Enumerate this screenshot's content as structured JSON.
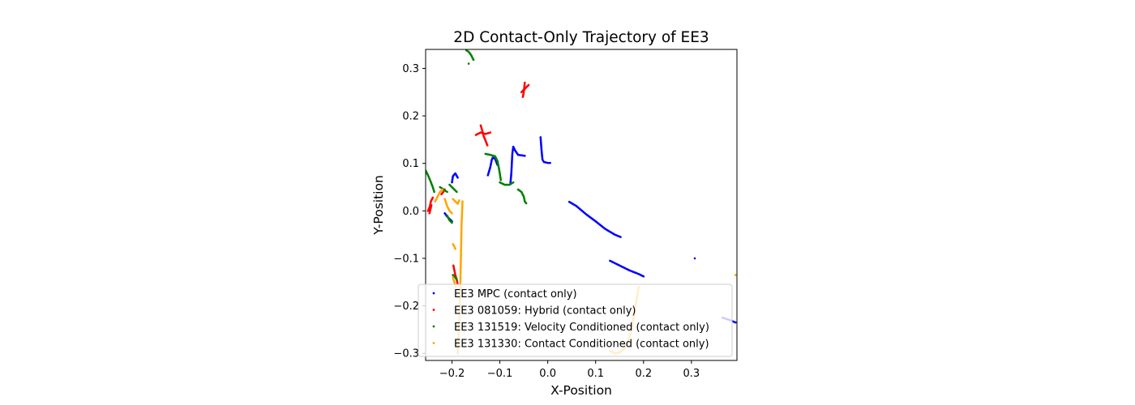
{
  "chart_data": {
    "type": "scatter",
    "title": "2D Contact-Only Trajectory of EE3",
    "xlabel": "X-Position",
    "ylabel": "Y-Position",
    "xlim": [
      -0.255,
      0.395
    ],
    "ylim": [
      -0.315,
      0.34
    ],
    "xticks": [
      -0.2,
      -0.1,
      0.0,
      0.1,
      0.2,
      0.3
    ],
    "xtick_labels": [
      "−0.2",
      "−0.1",
      "0.0",
      "0.1",
      "0.2",
      "0.3"
    ],
    "yticks": [
      -0.3,
      -0.2,
      -0.1,
      0.0,
      0.1,
      0.2,
      0.3
    ],
    "ytick_labels": [
      "−0.3",
      "−0.2",
      "−0.1",
      "0.0",
      "0.1",
      "0.2",
      "0.3"
    ],
    "grid": false,
    "legend_position": "lower-right",
    "series": [
      {
        "name": "EE3 MPC (contact only)",
        "color": "#0000ff",
        "segments": [
          [
            [
              -0.015,
              0.155
            ],
            [
              -0.013,
              0.128
            ],
            [
              -0.011,
              0.108
            ],
            [
              -0.008,
              0.103
            ],
            [
              0.0,
              0.101
            ],
            [
              0.005,
              0.101
            ]
          ],
          [
            [
              -0.125,
              0.075
            ],
            [
              -0.12,
              0.092
            ],
            [
              -0.117,
              0.107
            ],
            [
              -0.115,
              0.112
            ],
            [
              -0.11,
              0.11
            ],
            [
              -0.105,
              0.097
            ]
          ],
          [
            [
              -0.078,
              0.057
            ],
            [
              -0.076,
              0.08
            ],
            [
              -0.075,
              0.1
            ],
            [
              -0.074,
              0.12
            ],
            [
              -0.072,
              0.135
            ],
            [
              -0.068,
              0.127
            ],
            [
              -0.062,
              0.118
            ],
            [
              -0.055,
              0.117
            ],
            [
              -0.048,
              0.116
            ]
          ],
          [
            [
              -0.2,
              0.06
            ],
            [
              -0.198,
              0.073
            ],
            [
              -0.193,
              0.079
            ],
            [
              -0.188,
              0.07
            ]
          ],
          [
            [
              -0.215,
              -0.005
            ],
            [
              -0.21,
              -0.012
            ],
            [
              -0.205,
              -0.017
            ],
            [
              -0.2,
              -0.022
            ]
          ],
          [
            [
              0.045,
              0.019
            ],
            [
              0.06,
              0.01
            ],
            [
              0.08,
              -0.007
            ],
            [
              0.1,
              -0.022
            ],
            [
              0.12,
              -0.038
            ],
            [
              0.14,
              -0.05
            ],
            [
              0.152,
              -0.055
            ]
          ],
          [
            [
              0.13,
              -0.105
            ],
            [
              0.15,
              -0.115
            ],
            [
              0.17,
              -0.125
            ],
            [
              0.19,
              -0.133
            ],
            [
              0.2,
              -0.138
            ]
          ],
          [
            [
              0.307,
              -0.1
            ]
          ],
          [
            [
              0.365,
              -0.225
            ],
            [
              0.38,
              -0.23
            ],
            [
              0.392,
              -0.235
            ]
          ]
        ]
      },
      {
        "name": "EE3 081059: Hybrid (contact only)",
        "color": "#ff0000",
        "segments": [
          [
            [
              -0.055,
              0.25
            ],
            [
              -0.05,
              0.255
            ],
            [
              -0.045,
              0.26
            ],
            [
              -0.04,
              0.265
            ]
          ],
          [
            [
              -0.052,
              0.24
            ],
            [
              -0.05,
              0.25
            ],
            [
              -0.049,
              0.26
            ],
            [
              -0.048,
              0.27
            ]
          ],
          [
            [
              -0.15,
              0.16
            ],
            [
              -0.14,
              0.165
            ],
            [
              -0.13,
              0.162
            ],
            [
              -0.12,
              0.165
            ]
          ],
          [
            [
              -0.14,
              0.18
            ],
            [
              -0.137,
              0.17
            ],
            [
              -0.134,
              0.158
            ],
            [
              -0.13,
              0.148
            ],
            [
              -0.126,
              0.138
            ]
          ],
          [
            [
              -0.25,
              0.0
            ],
            [
              -0.248,
              0.005
            ],
            [
              -0.246,
              0.01
            ],
            [
              -0.244,
              0.02
            ],
            [
              -0.24,
              0.028
            ]
          ],
          [
            [
              -0.247,
              -0.005
            ],
            [
              -0.245,
              0.003
            ],
            [
              -0.243,
              0.012
            ]
          ],
          [
            [
              -0.222,
              0.035
            ],
            [
              -0.218,
              0.04
            ],
            [
              -0.215,
              0.045
            ]
          ],
          [
            [
              -0.197,
              -0.115
            ],
            [
              -0.195,
              -0.125
            ],
            [
              -0.193,
              -0.135
            ],
            [
              -0.19,
              -0.145
            ],
            [
              -0.188,
              -0.155
            ]
          ]
        ]
      },
      {
        "name": "EE3 131519: Velocity Conditioned (contact only)",
        "color": "#008000",
        "segments": [
          [
            [
              -0.17,
              0.338
            ],
            [
              -0.165,
              0.335
            ],
            [
              -0.16,
              0.328
            ],
            [
              -0.155,
              0.318
            ]
          ],
          [
            [
              -0.165,
              0.31
            ]
          ],
          [
            [
              -0.13,
              0.12
            ],
            [
              -0.12,
              0.118
            ],
            [
              -0.11,
              0.115
            ],
            [
              -0.105,
              0.105
            ],
            [
              -0.102,
              0.09
            ],
            [
              -0.1,
              0.078
            ],
            [
              -0.098,
              0.065
            ]
          ],
          [
            [
              -0.1,
              0.06
            ],
            [
              -0.09,
              0.055
            ],
            [
              -0.08,
              0.055
            ],
            [
              -0.072,
              0.06
            ]
          ],
          [
            [
              -0.062,
              0.045
            ],
            [
              -0.055,
              0.04
            ],
            [
              -0.05,
              0.03
            ],
            [
              -0.048,
              0.02
            ],
            [
              -0.045,
              0.016
            ]
          ],
          [
            [
              -0.255,
              0.085
            ],
            [
              -0.25,
              0.075
            ],
            [
              -0.245,
              0.063
            ],
            [
              -0.24,
              0.05
            ],
            [
              -0.237,
              0.04
            ]
          ],
          [
            [
              -0.225,
              0.05
            ],
            [
              -0.22,
              0.047
            ],
            [
              -0.215,
              0.043
            ],
            [
              -0.21,
              0.04
            ]
          ],
          [
            [
              -0.205,
              0.055
            ],
            [
              -0.2,
              0.05
            ],
            [
              -0.195,
              0.045
            ],
            [
              -0.19,
              0.04
            ]
          ],
          [
            [
              -0.21,
              -0.01
            ],
            [
              -0.205,
              -0.02
            ],
            [
              -0.2,
              -0.025
            ]
          ],
          [
            [
              -0.198,
              -0.135
            ],
            [
              -0.193,
              -0.14
            ],
            [
              -0.19,
              -0.145
            ]
          ]
        ]
      },
      {
        "name": "EE3 131330: Contact Conditioned (contact only)",
        "color": "#ffa500",
        "segments": [
          [
            [
              -0.235,
              0.02
            ],
            [
              -0.23,
              0.03
            ],
            [
              -0.225,
              0.04
            ],
            [
              -0.22,
              0.045
            ]
          ],
          [
            [
              -0.215,
              0.025
            ],
            [
              -0.21,
              0.01
            ],
            [
              -0.205,
              0.0
            ],
            [
              -0.2,
              -0.005
            ]
          ],
          [
            [
              -0.198,
              0.025
            ],
            [
              -0.193,
              0.02
            ],
            [
              -0.188,
              0.015
            ],
            [
              -0.185,
              0.022
            ]
          ],
          [
            [
              -0.178,
              0.02
            ],
            [
              -0.18,
              -0.03
            ],
            [
              -0.181,
              -0.08
            ],
            [
              -0.182,
              -0.13
            ],
            [
              -0.183,
              -0.18
            ],
            [
              -0.184,
              -0.22
            ],
            [
              -0.186,
              -0.26
            ],
            [
              -0.188,
              -0.3
            ]
          ],
          [
            [
              -0.198,
              -0.07
            ],
            [
              -0.195,
              -0.075
            ],
            [
              -0.193,
              -0.08
            ]
          ],
          [
            [
              -0.198,
              -0.14
            ],
            [
              -0.195,
              -0.15
            ],
            [
              -0.192,
              -0.16
            ]
          ],
          [
            [
              0.13,
              -0.295
            ],
            [
              0.14,
              -0.3
            ],
            [
              0.15,
              -0.298
            ],
            [
              0.16,
              -0.29
            ],
            [
              0.168,
              -0.275
            ],
            [
              0.175,
              -0.25
            ],
            [
              0.18,
              -0.22
            ],
            [
              0.185,
              -0.19
            ],
            [
              0.19,
              -0.16
            ]
          ],
          [
            [
              0.392,
              -0.135
            ]
          ]
        ]
      }
    ]
  }
}
